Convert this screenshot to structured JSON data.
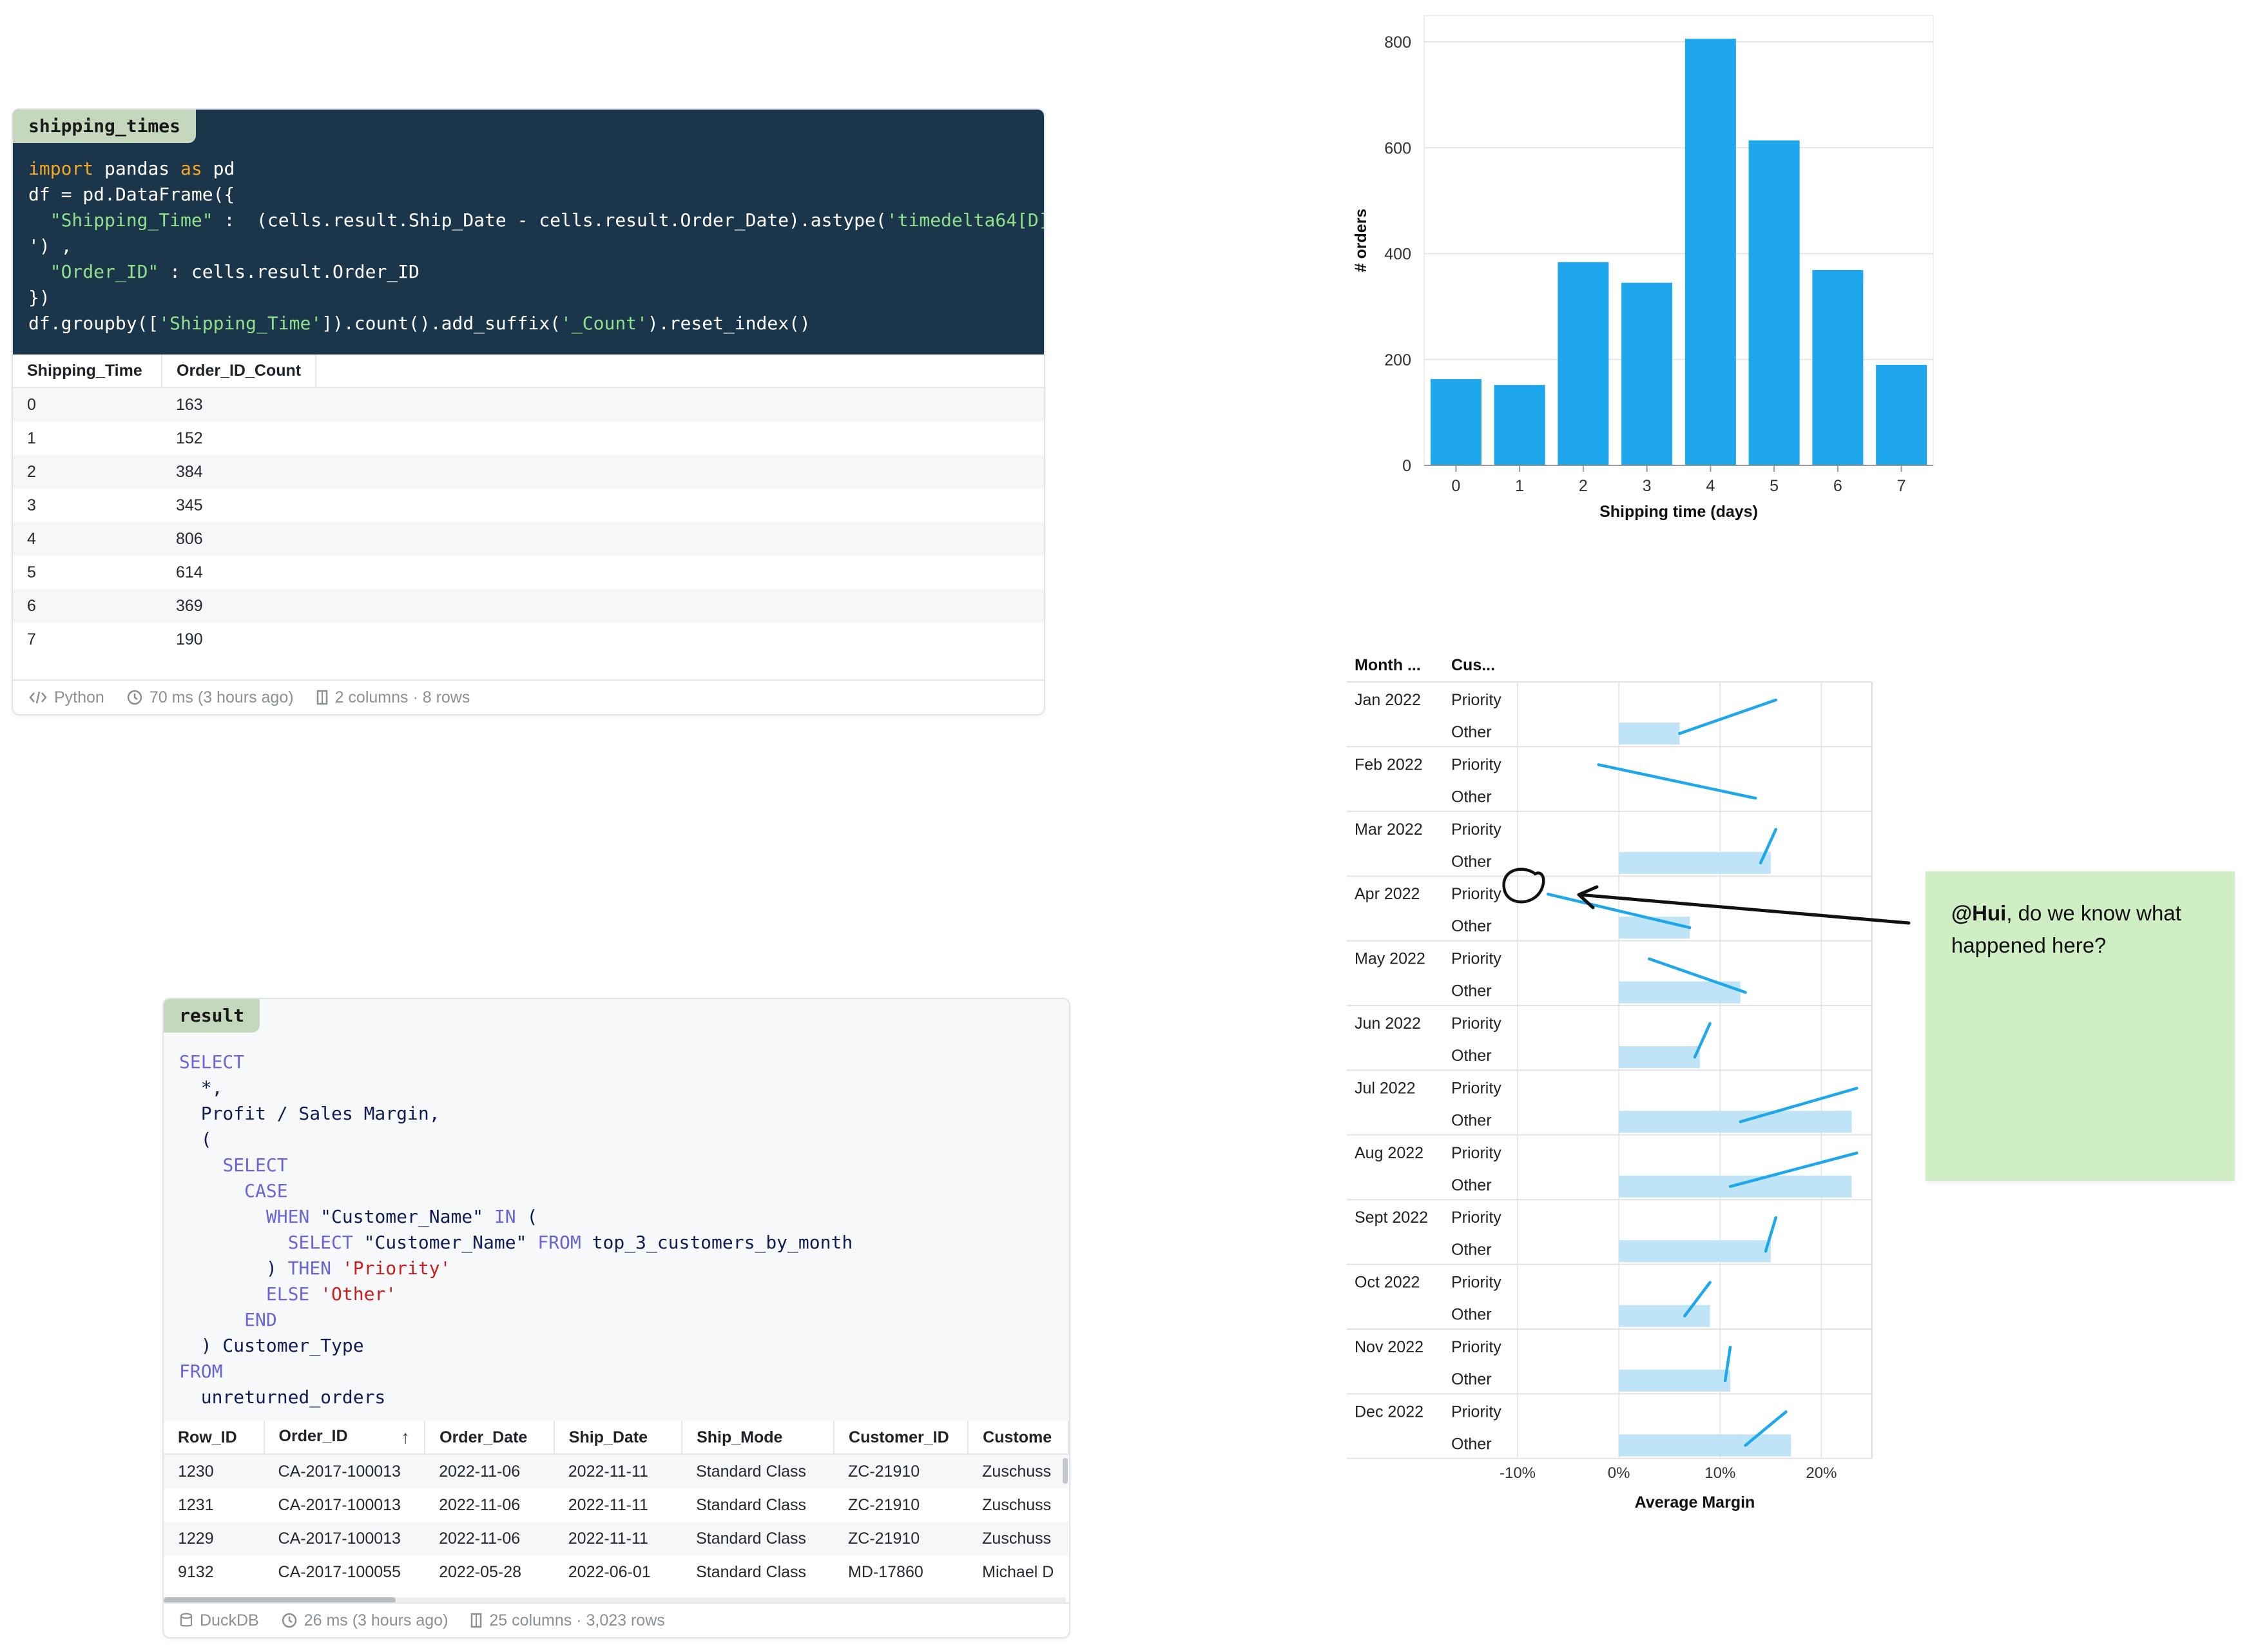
{
  "python_cell": {
    "tag": "shipping_times",
    "code_lines": [
      [
        [
          "import",
          "k-orange"
        ],
        [
          " pandas ",
          "k-white"
        ],
        [
          "as",
          "k-orange"
        ],
        [
          " pd",
          "k-white"
        ]
      ],
      [
        [
          "df = pd.DataFrame({",
          "k-white"
        ]
      ],
      [
        [
          "  ",
          "k-white"
        ],
        [
          "\"Shipping_Time\"",
          "k-green"
        ],
        [
          " :  (cells.result.Ship_Date - cells.result.Order_Date).astype(",
          "k-white"
        ],
        [
          "'timedelta64[D]",
          "k-green"
        ]
      ],
      [
        [
          "') ,",
          "k-white"
        ]
      ],
      [
        [
          "  ",
          "k-white"
        ],
        [
          "\"Order_ID\"",
          "k-green"
        ],
        [
          " : cells.result.Order_ID",
          "k-white"
        ]
      ],
      [
        [
          "})",
          "k-white"
        ]
      ],
      [
        [
          "df.groupby([",
          "k-white"
        ],
        [
          "'Shipping_Time'",
          "k-green"
        ],
        [
          "]).count().add_suffix(",
          "k-white"
        ],
        [
          "'_Count'",
          "k-green"
        ],
        [
          ").reset_index()",
          "k-white"
        ]
      ]
    ],
    "columns": [
      "Shipping_Time",
      "Order_ID_Count"
    ],
    "rows": [
      [
        "0",
        "163"
      ],
      [
        "1",
        "152"
      ],
      [
        "2",
        "384"
      ],
      [
        "3",
        "345"
      ],
      [
        "4",
        "806"
      ],
      [
        "5",
        "614"
      ],
      [
        "6",
        "369"
      ],
      [
        "7",
        "190"
      ]
    ],
    "footer": {
      "language": "Python",
      "timing": "70 ms (3 hours ago)",
      "shape": "2 columns · 8 rows"
    }
  },
  "sql_cell": {
    "tag": "result",
    "code_lines": [
      [
        [
          "SELECT",
          "k-blue"
        ]
      ],
      [
        [
          "  *,",
          "k-navy"
        ]
      ],
      [
        [
          "  Profit / Sales Margin,",
          "k-navy"
        ]
      ],
      [
        [
          "  (",
          "k-navy"
        ]
      ],
      [
        [
          "    ",
          "k-navy"
        ],
        [
          "SELECT",
          "k-blue"
        ]
      ],
      [
        [
          "      ",
          "k-navy"
        ],
        [
          "CASE",
          "k-blue"
        ]
      ],
      [
        [
          "        ",
          "k-navy"
        ],
        [
          "WHEN",
          "k-blue"
        ],
        [
          " \"Customer_Name\" ",
          "k-navy"
        ],
        [
          "IN",
          "k-blue"
        ],
        [
          " (",
          "k-navy"
        ]
      ],
      [
        [
          "          ",
          "k-navy"
        ],
        [
          "SELECT",
          "k-blue"
        ],
        [
          " \"Customer_Name\" ",
          "k-navy"
        ],
        [
          "FROM",
          "k-blue"
        ],
        [
          " top_3_customers_by_month",
          "k-navy"
        ]
      ],
      [
        [
          "        ) ",
          "k-navy"
        ],
        [
          "THEN",
          "k-blue"
        ],
        [
          " ",
          "k-navy"
        ],
        [
          "'Priority'",
          "k-red"
        ]
      ],
      [
        [
          "        ",
          "k-navy"
        ],
        [
          "ELSE",
          "k-blue"
        ],
        [
          " ",
          "k-navy"
        ],
        [
          "'Other'",
          "k-red"
        ]
      ],
      [
        [
          "      ",
          "k-navy"
        ],
        [
          "END",
          "k-blue"
        ]
      ],
      [
        [
          "  ) Customer_Type",
          "k-navy"
        ]
      ],
      [
        [
          "FROM",
          "k-blue"
        ]
      ],
      [
        [
          "  unreturned_orders",
          "k-navy"
        ]
      ]
    ],
    "columns": [
      "Row_ID",
      "Order_ID",
      "Order_Date",
      "Ship_Date",
      "Ship_Mode",
      "Customer_ID",
      "Custome"
    ],
    "sort_icon": "sort-ascending-icon",
    "rows": [
      [
        "1230",
        "CA-2017-100013",
        "2022-11-06",
        "2022-11-11",
        "Standard Class",
        "ZC-21910",
        "Zuschuss"
      ],
      [
        "1231",
        "CA-2017-100013",
        "2022-11-06",
        "2022-11-11",
        "Standard Class",
        "ZC-21910",
        "Zuschuss"
      ],
      [
        "1229",
        "CA-2017-100013",
        "2022-11-06",
        "2022-11-11",
        "Standard Class",
        "ZC-21910",
        "Zuschuss"
      ],
      [
        "9132",
        "CA-2017-100055",
        "2022-05-28",
        "2022-06-01",
        "Standard Class",
        "MD-17860",
        "Michael D"
      ]
    ],
    "footer": {
      "language": "DuckDB",
      "timing": "26 ms (3 hours ago)",
      "shape": "25 columns · 3,023 rows"
    }
  },
  "chart_data": [
    {
      "type": "bar",
      "categories": [
        "0",
        "1",
        "2",
        "3",
        "4",
        "5",
        "6",
        "7"
      ],
      "values": [
        163,
        152,
        384,
        345,
        806,
        614,
        369,
        190
      ],
      "xlabel": "Shipping time (days)",
      "ylabel": "# orders",
      "ylim": [
        0,
        850
      ],
      "yticks": [
        0,
        200,
        400,
        600,
        800
      ],
      "color": "#1ea7ec",
      "grid": true
    },
    {
      "type": "bar",
      "orientation": "horizontal",
      "row_headers": [
        "Month ...",
        "Cus..."
      ],
      "months": [
        "Jan 2022",
        "Feb 2022",
        "Mar 2022",
        "Apr 2022",
        "May 2022",
        "Jun 2022",
        "Jul 2022",
        "Aug 2022",
        "Sept 2022",
        "Oct 2022",
        "Nov 2022",
        "Dec 2022"
      ],
      "customer_types": [
        "Priority",
        "Other"
      ],
      "other_bar_values": [
        6,
        0,
        15,
        7,
        12,
        8,
        23,
        23,
        15,
        9,
        11,
        17
      ],
      "line_priority": [
        15.5,
        -2,
        15.5,
        -7,
        3,
        9,
        23.5,
        23.5,
        15.5,
        9,
        11,
        16.5
      ],
      "line_other": [
        6,
        13.5,
        14,
        7,
        12.5,
        7.5,
        12,
        11,
        14.5,
        6.5,
        10.5,
        12.5
      ],
      "xlabel": "Average Margin",
      "xticks": [
        "-10%",
        "0%",
        "10%",
        "20%"
      ],
      "xtick_values": [
        -10,
        0,
        10,
        20
      ],
      "xlim": [
        -10,
        25
      ],
      "bar_color": "#bfe4f8",
      "line_color": "#1ea7ec",
      "grid": true
    }
  ],
  "annotation": {
    "mention": "@Hui",
    "text": ", do we know what happened here?"
  }
}
